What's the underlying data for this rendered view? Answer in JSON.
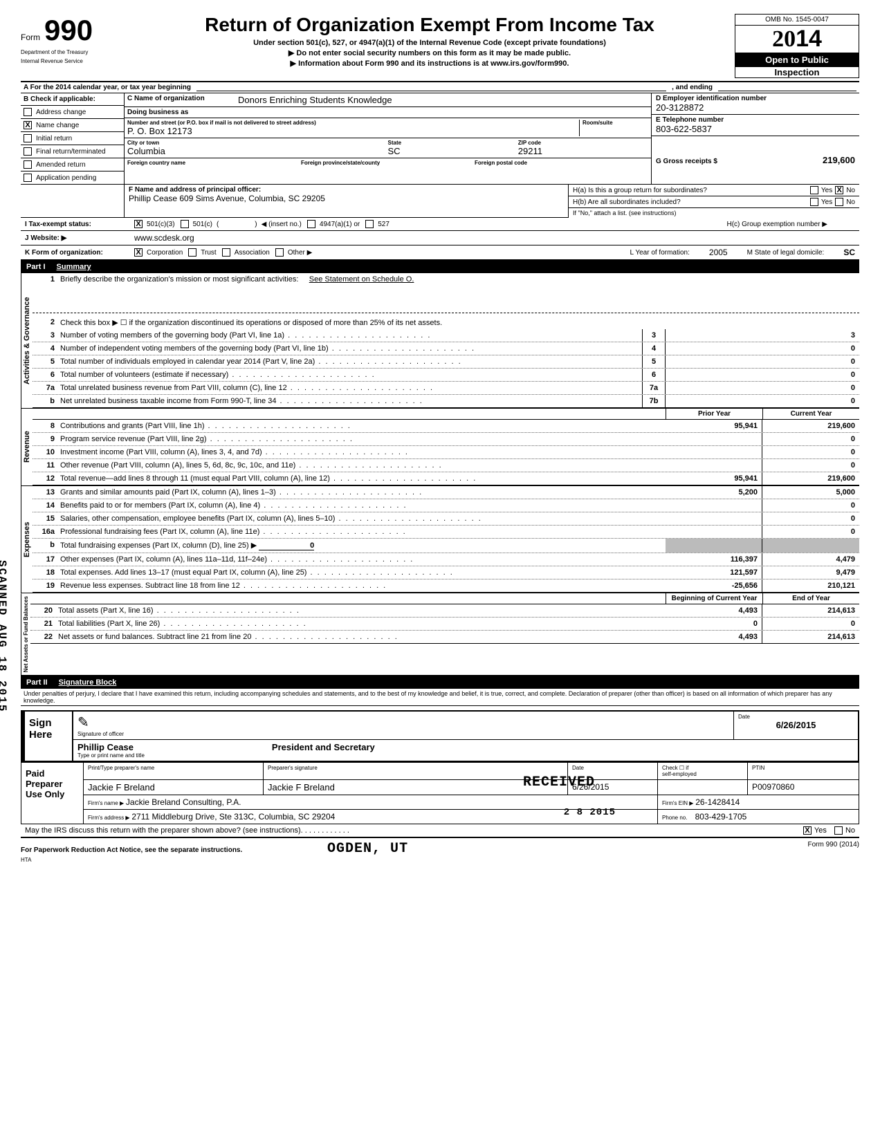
{
  "form": {
    "number": "990",
    "form_word": "Form",
    "dept1": "Department of the Treasury",
    "dept2": "Internal Revenue Service",
    "title": "Return of Organization Exempt From Income Tax",
    "subtitle": "Under section 501(c), 527, or 4947(a)(1) of the Internal Revenue Code (except private foundations)",
    "note1": "▶  Do not enter social security numbers on this form as it may be made public.",
    "note2": "▶    Information about Form 990 and its instructions is at www.irs.gov/form990.",
    "omb": "OMB No. 1545-0047",
    "year": "2014",
    "open": "Open to Public",
    "inspect": "Inspection"
  },
  "rowA": {
    "text_left": "A   For the 2014 calendar year, or tax year beginning",
    "text_mid": ", and ending"
  },
  "B": {
    "header": "B  Check if applicable:",
    "items": [
      {
        "label": "Address change",
        "checked": false
      },
      {
        "label": "Name change",
        "checked": true
      },
      {
        "label": "Initial return",
        "checked": false
      },
      {
        "label": "Final return/terminated",
        "checked": false
      },
      {
        "label": "Amended return",
        "checked": false
      },
      {
        "label": "Application pending",
        "checked": false
      }
    ]
  },
  "C": {
    "name_lbl": "C  Name of organization",
    "name": "Donors Enriching Students Knowledge",
    "dba_lbl": "Doing business as",
    "dba": "",
    "street_lbl": "Number and street (or P.O. box if mail is not delivered to street address)",
    "street": "P. O. Box 12173",
    "room_lbl": "Room/suite",
    "room": "",
    "city_lbl": "City or town",
    "city": "Columbia",
    "state_lbl": "State",
    "state": "SC",
    "zip_lbl": "ZIP code",
    "zip": "29211",
    "foreign_country_lbl": "Foreign country name",
    "foreign_prov_lbl": "Foreign province/state/county",
    "foreign_postal_lbl": "Foreign postal code"
  },
  "D": {
    "lbl": "D   Employer identification number",
    "val": "20-3128872"
  },
  "E": {
    "lbl": "E   Telephone number",
    "val": "803-622-5837"
  },
  "G": {
    "lbl": "G   Gross receipts $",
    "val": "219,600"
  },
  "F": {
    "lbl": "F  Name and address of principal officer:",
    "val": "Phillip Cease 609 Sims Avenue, Columbia, SC  29205"
  },
  "H": {
    "a": "H(a) Is this a group return for subordinates?",
    "a_no_checked": true,
    "b": "H(b) Are all subordinates included?",
    "b_note": "If \"No,\" attach a list. (see instructions)",
    "c": "H(c) Group exemption number ▶",
    "yes": "Yes",
    "no": "No"
  },
  "I": {
    "lbl": "I   Tax-exempt status:",
    "opt1": "501(c)(3)",
    "opt1_checked": true,
    "opt2": "501(c)",
    "insert": "◀ (insert no.)",
    "opt3": "4947(a)(1) or",
    "opt4": "527"
  },
  "J": {
    "lbl": "J  Website: ▶",
    "val": "www.scdesk.org"
  },
  "K": {
    "lbl": "K  Form of organization:",
    "opts": [
      "Corporation",
      "Trust",
      "Association",
      "Other ▶"
    ],
    "checked_idx": 0,
    "L_lbl": "L Year of formation:",
    "L_val": "2005",
    "M_lbl": "M State of legal domicile:",
    "M_val": "SC"
  },
  "partI": {
    "header_part": "Part I",
    "header_title": "Summary",
    "vlabels": {
      "gov": "Activities & Governance",
      "rev": "Revenue",
      "exp": "Expenses",
      "net": "Net Assets or\nFund Balances"
    },
    "line1_lbl": "Briefly describe the organization's mission or most significant activities:",
    "line1_val": "See Statement on Schedule O.",
    "line2": "Check this box  ▶ ☐  if the organization discontinued its operations or disposed of more than 25% of its net assets.",
    "gov_lines": [
      {
        "n": "3",
        "d": "Number of voting members of the governing body (Part VI, line 1a)",
        "box": "3",
        "v": "3"
      },
      {
        "n": "4",
        "d": "Number of independent voting members of the governing body (Part VI, line 1b)",
        "box": "4",
        "v": "0"
      },
      {
        "n": "5",
        "d": "Total number of individuals employed in calendar year 2014 (Part V, line 2a)",
        "box": "5",
        "v": "0"
      },
      {
        "n": "6",
        "d": "Total number of volunteers (estimate if necessary)",
        "box": "6",
        "v": "0"
      },
      {
        "n": "7a",
        "d": "Total unrelated business revenue from Part VIII, column (C), line 12",
        "box": "7a",
        "v": "0"
      },
      {
        "n": "b",
        "d": "Net unrelated business taxable income from Form 990-T, line 34",
        "box": "7b",
        "v": "0"
      }
    ],
    "year_cols": {
      "prior": "Prior Year",
      "current": "Current Year",
      "begin": "Beginning of Current Year",
      "end": "End of Year"
    },
    "rev_lines": [
      {
        "n": "8",
        "d": "Contributions and grants (Part VIII, line 1h)",
        "p": "95,941",
        "c": "219,600"
      },
      {
        "n": "9",
        "d": "Program service revenue (Part VIII, line 2g)",
        "p": "",
        "c": "0"
      },
      {
        "n": "10",
        "d": "Investment income (Part VIII, column (A), lines 3, 4, and 7d)",
        "p": "",
        "c": "0"
      },
      {
        "n": "11",
        "d": "Other revenue (Part VIII, column (A), lines 5, 6d, 8c, 9c, 10c, and 11e)",
        "p": "",
        "c": "0"
      },
      {
        "n": "12",
        "d": "Total revenue—add lines 8 through 11 (must equal Part VIII, column (A), line 12)",
        "p": "95,941",
        "c": "219,600"
      }
    ],
    "exp_lines": [
      {
        "n": "13",
        "d": "Grants and similar amounts paid (Part IX, column (A), lines 1–3)",
        "p": "5,200",
        "c": "5,000"
      },
      {
        "n": "14",
        "d": "Benefits paid to or for members (Part IX, column (A), line 4)",
        "p": "",
        "c": "0"
      },
      {
        "n": "15",
        "d": "Salaries, other compensation, employee benefits (Part IX, column (A), lines 5–10)",
        "p": "",
        "c": "0"
      },
      {
        "n": "16a",
        "d": "Professional fundraising fees (Part IX, column (A), line 11e)",
        "p": "",
        "c": "0"
      },
      {
        "n": "b",
        "d": "Total fundraising expenses (Part IX, column (D), line 25)  ▶",
        "p": "0",
        "c": "",
        "shaded": true
      },
      {
        "n": "17",
        "d": "Other expenses (Part IX, column (A), lines 11a–11d, 11f–24e)",
        "p": "116,397",
        "c": "4,479"
      },
      {
        "n": "18",
        "d": "Total expenses. Add lines 13–17 (must equal Part IX, column (A), line 25)",
        "p": "121,597",
        "c": "9,479"
      },
      {
        "n": "19",
        "d": "Revenue less expenses. Subtract line 18 from line 12",
        "p": "-25,656",
        "c": "210,121"
      }
    ],
    "net_lines": [
      {
        "n": "20",
        "d": "Total assets (Part X, line 16)",
        "p": "4,493",
        "c": "214,613"
      },
      {
        "n": "21",
        "d": "Total liabilities (Part X, line 26)",
        "p": "0",
        "c": "0"
      },
      {
        "n": "22",
        "d": "Net assets or fund balances. Subtract line 21 from line 20",
        "p": "4,493",
        "c": "214,613"
      }
    ]
  },
  "partII": {
    "header_part": "Part II",
    "header_title": "Signature Block",
    "perjury": "Under penalties of perjury, I declare that I have examined this return, including accompanying schedules and statements, and to the best of my knowledge and belief, it is true, correct, and complete. Declaration of preparer (other than officer) is based on all information of which preparer has any knowledge.",
    "sign_here": "Sign\nHere",
    "sig_officer_lbl": "Signature of officer",
    "date_lbl": "Date",
    "date_val": "6/26/2015",
    "officer_name": "Phillip Cease",
    "officer_title": "President and Secretary",
    "name_title_lbl": "Type or print name and title"
  },
  "preparer": {
    "label": "Paid\nPreparer\nUse Only",
    "h_name": "Print/Type preparer's name",
    "h_sig": "Preparer's signature",
    "h_date": "Date",
    "h_check": "Check ☐ if\nself-employed",
    "h_ptin": "PTIN",
    "name": "Jackie F Breland",
    "sig": "Jackie F Breland",
    "date": "6/26/2015",
    "ptin": "P00970860",
    "firm_lbl": "Firm's name    ▶",
    "firm": "Jackie Breland Consulting, P.A.",
    "ein_lbl": "Firm's EIN ▶",
    "ein": "26-1428414",
    "addr_lbl": "Firm's address ▶",
    "addr": "2711 Middleburg Drive, Ste 313C, Columbia, SC 29204",
    "phone_lbl": "Phone no.",
    "phone": "803-429-1705",
    "discuss": "May the IRS discuss this return with the preparer shown above? (see instructions)",
    "discuss_yes_checked": true,
    "yes": "Yes",
    "no": "No"
  },
  "footer": {
    "left": "For Paperwork Reduction Act Notice, see the separate instructions.",
    "hta": "HTA",
    "right": "Form 990 (2014)"
  },
  "stamps": {
    "received": "RECEIVED",
    "received2": "2 8 2015",
    "ogden": "OGDEN, UT",
    "scanned": "SCANNED AUG 18 2015"
  }
}
